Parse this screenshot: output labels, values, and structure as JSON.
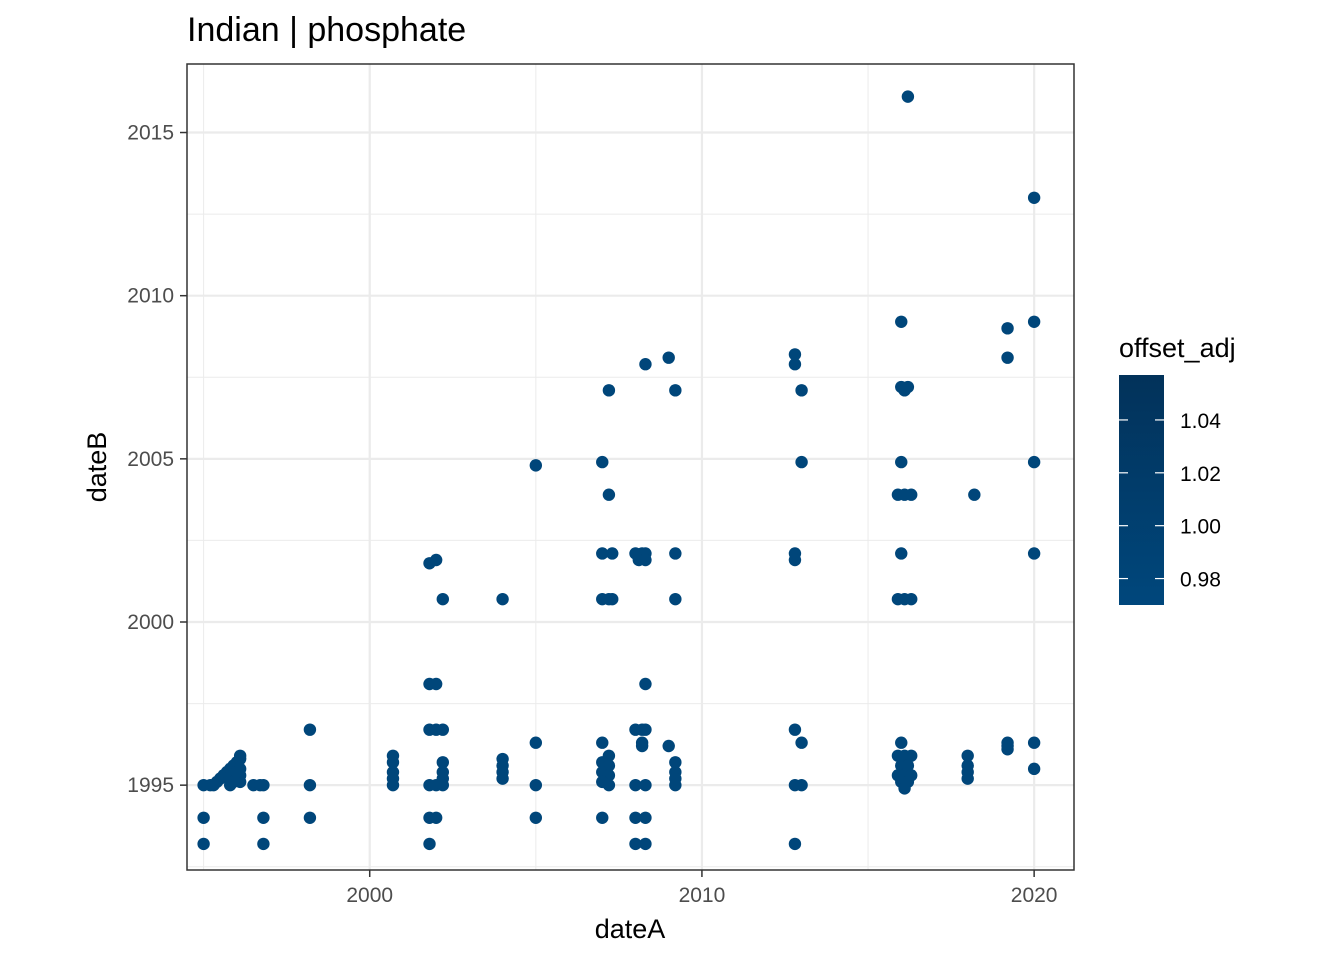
{
  "chart_data": {
    "type": "scatter",
    "title": "Indian | phosphate",
    "xlabel": "dateA",
    "ylabel": "dateB",
    "xlim": [
      1994.5,
      2021.2
    ],
    "ylim": [
      1992.4,
      2017.1
    ],
    "x_ticks": [
      2000,
      2010,
      2020
    ],
    "y_ticks": [
      1995,
      2000,
      2005,
      2010,
      2015
    ],
    "grid": true,
    "point_color": "#00467A",
    "legend": {
      "title": "offset_adj",
      "position": "right",
      "type": "colorbar",
      "range": [
        0.97,
        1.057
      ],
      "ticks": [
        1.04,
        1.02,
        1.0,
        0.98
      ],
      "tick_labels": [
        "1.04",
        "1.02",
        "1.00",
        "0.98"
      ],
      "color_low": "#00477C",
      "color_high": "#02325A"
    },
    "points": [
      [
        1995.0,
        1995.0
      ],
      [
        1995.0,
        1994.0
      ],
      [
        1995.0,
        1993.2
      ],
      [
        1995.2,
        1995.0
      ],
      [
        1995.3,
        1995.0
      ],
      [
        1995.4,
        1995.1
      ],
      [
        1995.5,
        1995.2
      ],
      [
        1995.6,
        1995.3
      ],
      [
        1995.7,
        1995.4
      ],
      [
        1995.8,
        1995.5
      ],
      [
        1995.9,
        1995.6
      ],
      [
        1995.8,
        1995.0
      ],
      [
        1995.9,
        1995.1
      ],
      [
        1996.0,
        1995.2
      ],
      [
        1996.0,
        1995.7
      ],
      [
        1996.1,
        1995.8
      ],
      [
        1996.1,
        1995.5
      ],
      [
        1996.1,
        1995.3
      ],
      [
        1996.1,
        1995.1
      ],
      [
        1996.0,
        1995.4
      ],
      [
        1996.1,
        1995.9
      ],
      [
        1996.5,
        1995.0
      ],
      [
        1996.7,
        1995.0
      ],
      [
        1996.8,
        1994.0
      ],
      [
        1996.8,
        1993.2
      ],
      [
        1996.8,
        1995.0
      ],
      [
        1998.2,
        1996.7
      ],
      [
        1998.2,
        1995.0
      ],
      [
        1998.2,
        1994.0
      ],
      [
        2000.7,
        1995.9
      ],
      [
        2000.7,
        1995.7
      ],
      [
        2000.7,
        1995.4
      ],
      [
        2000.7,
        1995.2
      ],
      [
        2000.7,
        1995.0
      ],
      [
        2001.8,
        2001.8
      ],
      [
        2002.0,
        2001.9
      ],
      [
        2002.2,
        2000.7
      ],
      [
        2001.8,
        1998.1
      ],
      [
        2002.0,
        1998.1
      ],
      [
        2001.8,
        1996.7
      ],
      [
        2002.0,
        1996.7
      ],
      [
        2002.2,
        1996.7
      ],
      [
        2002.2,
        1995.7
      ],
      [
        2002.2,
        1995.4
      ],
      [
        2002.2,
        1995.2
      ],
      [
        2001.8,
        1995.0
      ],
      [
        2002.0,
        1995.0
      ],
      [
        2002.2,
        1995.0
      ],
      [
        2001.8,
        1994.0
      ],
      [
        2002.0,
        1994.0
      ],
      [
        2001.8,
        1993.2
      ],
      [
        2004.0,
        2000.7
      ],
      [
        2004.0,
        1995.8
      ],
      [
        2004.0,
        1995.6
      ],
      [
        2004.0,
        1995.4
      ],
      [
        2004.0,
        1995.2
      ],
      [
        2005.0,
        2004.8
      ],
      [
        2005.0,
        1996.3
      ],
      [
        2005.0,
        1995.0
      ],
      [
        2005.0,
        1994.0
      ],
      [
        2007.0,
        2004.9
      ],
      [
        2007.2,
        2007.1
      ],
      [
        2007.2,
        2003.9
      ],
      [
        2007.0,
        2002.1
      ],
      [
        2007.3,
        2002.1
      ],
      [
        2007.0,
        2000.7
      ],
      [
        2007.2,
        2000.7
      ],
      [
        2007.3,
        2000.7
      ],
      [
        2007.0,
        1996.3
      ],
      [
        2007.2,
        1995.9
      ],
      [
        2007.0,
        1995.7
      ],
      [
        2007.2,
        1995.6
      ],
      [
        2007.0,
        1995.4
      ],
      [
        2007.2,
        1995.3
      ],
      [
        2007.0,
        1995.1
      ],
      [
        2007.2,
        1995.0
      ],
      [
        2007.0,
        1994.0
      ],
      [
        2008.3,
        2007.9
      ],
      [
        2008.0,
        2002.1
      ],
      [
        2008.2,
        2002.1
      ],
      [
        2008.3,
        2002.1
      ],
      [
        2008.1,
        2001.9
      ],
      [
        2008.3,
        2001.9
      ],
      [
        2008.3,
        1998.1
      ],
      [
        2008.0,
        1996.7
      ],
      [
        2008.2,
        1996.7
      ],
      [
        2008.3,
        1996.7
      ],
      [
        2008.2,
        1996.3
      ],
      [
        2008.2,
        1996.2
      ],
      [
        2008.0,
        1995.0
      ],
      [
        2008.3,
        1995.0
      ],
      [
        2008.0,
        1994.0
      ],
      [
        2008.3,
        1994.0
      ],
      [
        2008.0,
        1993.2
      ],
      [
        2008.3,
        1993.2
      ],
      [
        2009.0,
        2008.1
      ],
      [
        2009.2,
        2007.1
      ],
      [
        2009.2,
        2002.1
      ],
      [
        2009.2,
        2000.7
      ],
      [
        2009.0,
        1996.2
      ],
      [
        2009.2,
        1995.7
      ],
      [
        2009.2,
        1995.4
      ],
      [
        2009.2,
        1995.2
      ],
      [
        2009.2,
        1995.0
      ],
      [
        2012.8,
        2008.2
      ],
      [
        2012.8,
        2007.9
      ],
      [
        2013.0,
        2007.1
      ],
      [
        2013.0,
        2004.9
      ],
      [
        2012.8,
        2002.1
      ],
      [
        2012.8,
        2001.9
      ],
      [
        2012.8,
        1996.7
      ],
      [
        2013.0,
        1996.3
      ],
      [
        2012.8,
        1995.0
      ],
      [
        2013.0,
        1995.0
      ],
      [
        2012.8,
        1993.2
      ],
      [
        2016.2,
        2016.1
      ],
      [
        2016.0,
        2009.2
      ],
      [
        2016.0,
        2007.2
      ],
      [
        2016.1,
        2007.1
      ],
      [
        2016.2,
        2007.2
      ],
      [
        2016.0,
        2004.9
      ],
      [
        2015.9,
        2003.9
      ],
      [
        2016.1,
        2003.9
      ],
      [
        2016.3,
        2003.9
      ],
      [
        2016.0,
        2002.1
      ],
      [
        2015.9,
        2000.7
      ],
      [
        2016.1,
        2000.7
      ],
      [
        2016.3,
        2000.7
      ],
      [
        2016.0,
        1996.3
      ],
      [
        2015.9,
        1995.9
      ],
      [
        2016.1,
        1995.9
      ],
      [
        2016.3,
        1995.9
      ],
      [
        2016.0,
        1995.6
      ],
      [
        2016.2,
        1995.6
      ],
      [
        2015.9,
        1995.3
      ],
      [
        2016.1,
        1995.3
      ],
      [
        2016.3,
        1995.3
      ],
      [
        2016.0,
        1995.1
      ],
      [
        2016.2,
        1995.1
      ],
      [
        2016.1,
        1994.9
      ],
      [
        2018.2,
        2003.9
      ],
      [
        2018.0,
        1995.9
      ],
      [
        2018.0,
        1995.6
      ],
      [
        2018.0,
        1995.4
      ],
      [
        2018.0,
        1995.2
      ],
      [
        2019.2,
        2009.0
      ],
      [
        2019.2,
        2008.1
      ],
      [
        2019.2,
        1996.3
      ],
      [
        2019.2,
        1996.2
      ],
      [
        2019.2,
        1996.1
      ],
      [
        2020.0,
        2013.0
      ],
      [
        2020.0,
        2009.2
      ],
      [
        2020.0,
        2004.9
      ],
      [
        2020.0,
        2002.1
      ],
      [
        2020.0,
        1996.3
      ],
      [
        2020.0,
        1995.5
      ]
    ]
  }
}
